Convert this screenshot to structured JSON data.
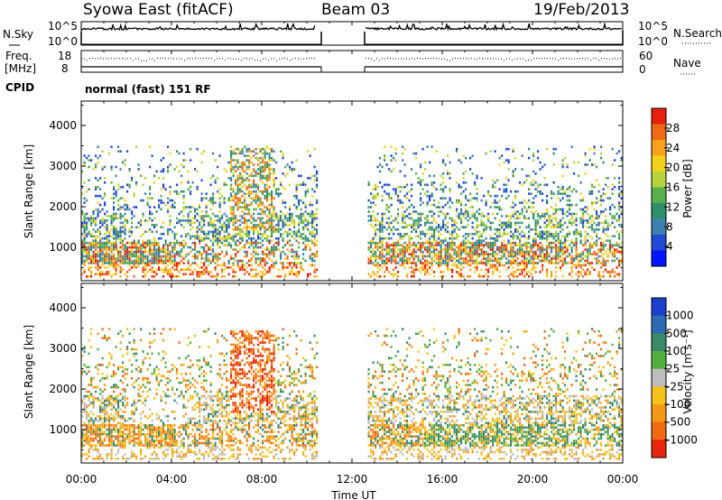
{
  "header": {
    "title": "Syowa East (fitACF)",
    "beam": "Beam 03",
    "date": "19/Feb/2013"
  },
  "params": {
    "nsky_label": "N.Sky",
    "nsearch_label": "N.Search",
    "freq_label_line1": "Freq.",
    "freq_label_line2": "[MHz]",
    "nave_label": "Nave",
    "cpid_label": "CPID",
    "cpid_value": "normal (fast) 151 RF",
    "noise_ticks": [
      "10^5",
      "10^0"
    ],
    "freq_ticks": [
      "18",
      "8"
    ],
    "nave_ticks": [
      "60",
      "0"
    ]
  },
  "chart_data": [
    {
      "type": "heatmap",
      "panel": "power",
      "xlabel": "",
      "ylabel": "Slant Range [km]",
      "x_ticks": [
        "00:00",
        "04:00",
        "08:00",
        "12:00",
        "16:00",
        "20:00",
        "00:00"
      ],
      "x_range_hours": [
        0,
        24
      ],
      "y_ticks": [
        1000,
        2000,
        3000,
        4000
      ],
      "y_range_km": [
        180,
        4600
      ],
      "data_gap_hours": [
        10.4,
        12.6
      ],
      "colorbar_label": "Power [dB]",
      "colorbar_ticks": [
        "4",
        "8",
        "12",
        "16",
        "20",
        "24",
        "28"
      ],
      "colorbar_range": [
        0,
        32
      ],
      "colors": [
        "#0014ff",
        "#2149d3",
        "#3c7fb0",
        "#2f8f6a",
        "#57b04a",
        "#b5d33a",
        "#f3d11b",
        "#f7a21a",
        "#ef6a12",
        "#e81e0e"
      ]
    },
    {
      "type": "heatmap",
      "panel": "velocity",
      "xlabel": "Time UT",
      "ylabel": "Slant Range [km]",
      "x_ticks": [
        "00:00",
        "04:00",
        "08:00",
        "12:00",
        "16:00",
        "20:00",
        "00:00"
      ],
      "x_range_hours": [
        0,
        24
      ],
      "y_ticks": [
        1000,
        2000,
        3000,
        4000
      ],
      "y_range_km": [
        180,
        4600
      ],
      "data_gap_hours": [
        10.4,
        12.6
      ],
      "colorbar_label": "Velocity [m s⁻¹]",
      "colorbar_ticks": [
        "1000",
        "500",
        "100",
        "25",
        "-25",
        "-100",
        "-500",
        "-1000"
      ],
      "colors": [
        "#1d3fd0",
        "#2f6bb5",
        "#3a8a6a",
        "#52b03f",
        "#bdbdbd",
        "#f4c21a",
        "#f29a18",
        "#ef6a12",
        "#e8230e"
      ]
    }
  ]
}
